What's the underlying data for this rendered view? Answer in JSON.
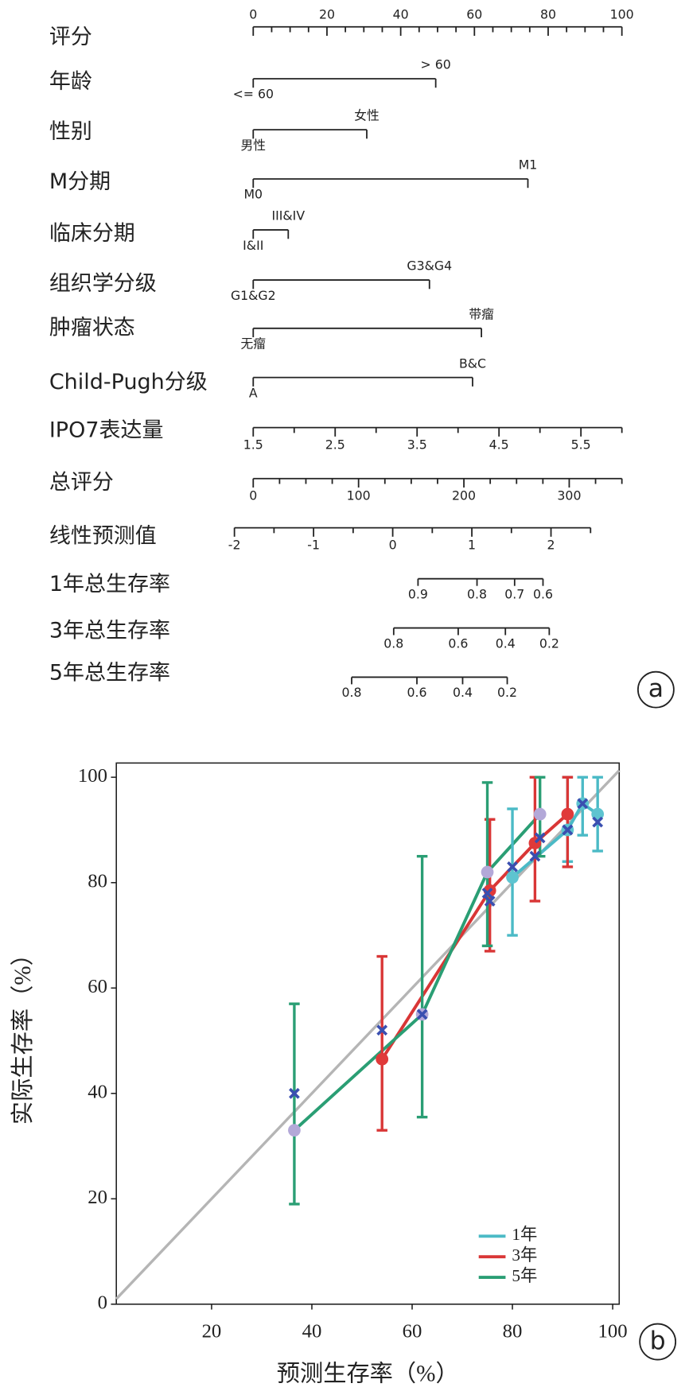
{
  "chart_data": [
    {
      "type": "nomogram",
      "panel_label": "a",
      "rows": [
        {
          "label": "评分",
          "kind": "axis",
          "labels_above": true,
          "lim": [
            0,
            100
          ],
          "at": [
            0,
            100
          ],
          "ticks": [
            0,
            20,
            40,
            60,
            80,
            100
          ],
          "minor_ticks": [
            5,
            10,
            15,
            25,
            30,
            35,
            45,
            50,
            55,
            65,
            70,
            75,
            85,
            90,
            95
          ]
        },
        {
          "label": "年龄",
          "kind": "category",
          "levels": [
            {
              "label": "<= 60",
              "points": 0
            },
            {
              "label": "> 60",
              "points": 49.5
            }
          ]
        },
        {
          "label": "性别",
          "kind": "category",
          "levels": [
            {
              "label": "男性",
              "points": 0
            },
            {
              "label": "女性",
              "points": 30.8
            }
          ]
        },
        {
          "label": "M分期",
          "kind": "category",
          "levels": [
            {
              "label": "M0",
              "points": 0
            },
            {
              "label": "M1",
              "points": 74.5
            }
          ]
        },
        {
          "label": "临床分期",
          "kind": "category",
          "levels": [
            {
              "label": "I&II",
              "points": 0
            },
            {
              "label": "III&IV",
              "points": 9.5
            }
          ]
        },
        {
          "label": "组织学分级",
          "kind": "category",
          "levels": [
            {
              "label": "G1&G2",
              "points": 0
            },
            {
              "label": "G3&G4",
              "points": 47.8
            }
          ]
        },
        {
          "label": "肿瘤状态",
          "kind": "category",
          "levels": [
            {
              "label": "无瘤",
              "points": 0
            },
            {
              "label": "带瘤",
              "points": 61.9
            }
          ]
        },
        {
          "label": "Child-Pugh分级",
          "kind": "category",
          "levels": [
            {
              "label": "A",
              "points": 0
            },
            {
              "label": "B&C",
              "points": 59.5
            }
          ]
        },
        {
          "label": "IPO7表达量",
          "kind": "axis",
          "lim": [
            1.5,
            6
          ],
          "at": [
            0,
            100
          ],
          "ticks": [
            1.5,
            2.5,
            3.5,
            4.5,
            5.5
          ],
          "minor_ticks": [
            2,
            3,
            4,
            5,
            6
          ]
        },
        {
          "label": "总评分",
          "kind": "axis",
          "lim": [
            0,
            350
          ],
          "at": [
            0,
            100
          ],
          "ticks": [
            0,
            100,
            200,
            300
          ],
          "minor_ticks": [
            25,
            50,
            75,
            125,
            150,
            175,
            225,
            250,
            275,
            325,
            350
          ]
        },
        {
          "label": "线性预测值",
          "kind": "axis",
          "lim": [
            -2,
            2.5
          ],
          "at": [
            -5.1,
            91.5
          ],
          "ticks": [
            -2,
            -1,
            0,
            1,
            2
          ],
          "minor_ticks": [
            -1.5,
            -0.5,
            0.5,
            1.5,
            2.5
          ]
        },
        {
          "label": "1年总生存率",
          "kind": "survival",
          "ticks": [
            0.9,
            0.8,
            0.7,
            0.6
          ],
          "tick_points": [
            44.7,
            60.7,
            70.9,
            78.6
          ]
        },
        {
          "label": "3年总生存率",
          "kind": "survival",
          "ticks": [
            0.8,
            0.6,
            0.4,
            0.2
          ],
          "tick_points": [
            38.1,
            55.6,
            68.4,
            80.3
          ]
        },
        {
          "label": "5年总生存率",
          "kind": "survival",
          "ticks": [
            0.8,
            0.6,
            0.4,
            0.2
          ],
          "tick_points": [
            26.7,
            44.4,
            56.8,
            68.9
          ]
        }
      ]
    },
    {
      "type": "line",
      "panel_label": "b",
      "x_label": "预测生存率（%）",
      "y_label": "实际生存率（%）",
      "xlim": [
        1,
        101.3
      ],
      "ylim": [
        0,
        102.7
      ],
      "xticks": [
        20,
        40,
        60,
        80,
        100
      ],
      "yticks": [
        0,
        20,
        40,
        60,
        80,
        100
      ],
      "reference_line": true,
      "legend": "lower-right",
      "corrected_color": "#3a4fb0",
      "series": [
        {
          "name": "1年",
          "color": "#4bbac6",
          "marker_color": "#5ec4d0",
          "x": [
            80,
            91,
            94,
            97
          ],
          "values": [
            81,
            90,
            95,
            93
          ],
          "err_low": [
            70,
            84,
            89,
            86
          ],
          "err_high": [
            94,
            100,
            100,
            100
          ],
          "corrected": [
            83,
            90,
            95,
            91.5
          ]
        },
        {
          "name": "3年",
          "color": "#d93636",
          "marker_color": "#e03a3a",
          "x": [
            54,
            75.5,
            84.5,
            91
          ],
          "values": [
            46.5,
            78.5,
            87.5,
            93
          ],
          "err_low": [
            33,
            67,
            76.5,
            83
          ],
          "err_high": [
            66,
            92,
            100,
            100
          ],
          "corrected": [
            52,
            76.5,
            85,
            90
          ]
        },
        {
          "name": "5年",
          "color": "#2a9e74",
          "marker_color": "#b3a8d8",
          "x": [
            36.5,
            62,
            75,
            85.5
          ],
          "values": [
            33,
            55,
            82,
            93
          ],
          "err_low": [
            19,
            35.5,
            68,
            85
          ],
          "err_high": [
            57,
            85,
            99,
            100
          ],
          "corrected": [
            40,
            55,
            78,
            88.5
          ]
        }
      ]
    }
  ]
}
